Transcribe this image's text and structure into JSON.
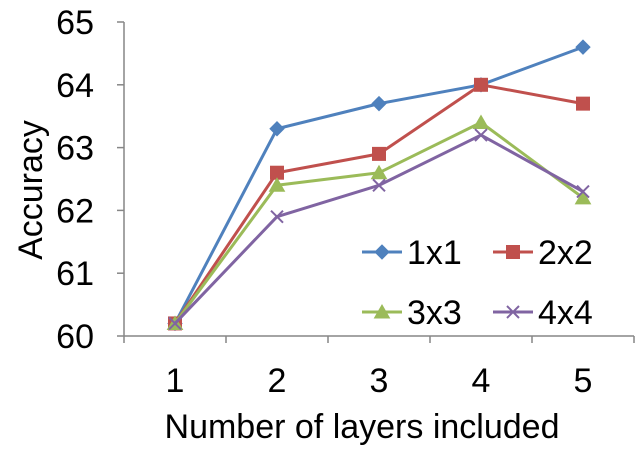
{
  "chart_data": {
    "type": "line",
    "title": "",
    "xlabel": "Number of layers included",
    "ylabel": "Accuracy",
    "categories": [
      "1",
      "2",
      "3",
      "4",
      "5"
    ],
    "ylim": [
      60,
      65
    ],
    "yticks": [
      60,
      61,
      62,
      63,
      64,
      65
    ],
    "grid": false,
    "legend": {
      "placement": "bottom-right inside plot",
      "columns": 2
    },
    "series": [
      {
        "name": "1x1",
        "color": "#4F81BD",
        "marker": "diamond",
        "values": [
          60.2,
          63.3,
          63.7,
          64.0,
          64.6
        ]
      },
      {
        "name": "2x2",
        "color": "#C0504D",
        "marker": "square",
        "values": [
          60.2,
          62.6,
          62.9,
          64.0,
          63.7
        ]
      },
      {
        "name": "3x3",
        "color": "#9BBB59",
        "marker": "triangle",
        "values": [
          60.2,
          62.4,
          62.6,
          63.4,
          62.2
        ]
      },
      {
        "name": "4x4",
        "color": "#8064A2",
        "marker": "x",
        "values": [
          60.2,
          61.9,
          62.4,
          63.2,
          62.3
        ]
      }
    ]
  }
}
